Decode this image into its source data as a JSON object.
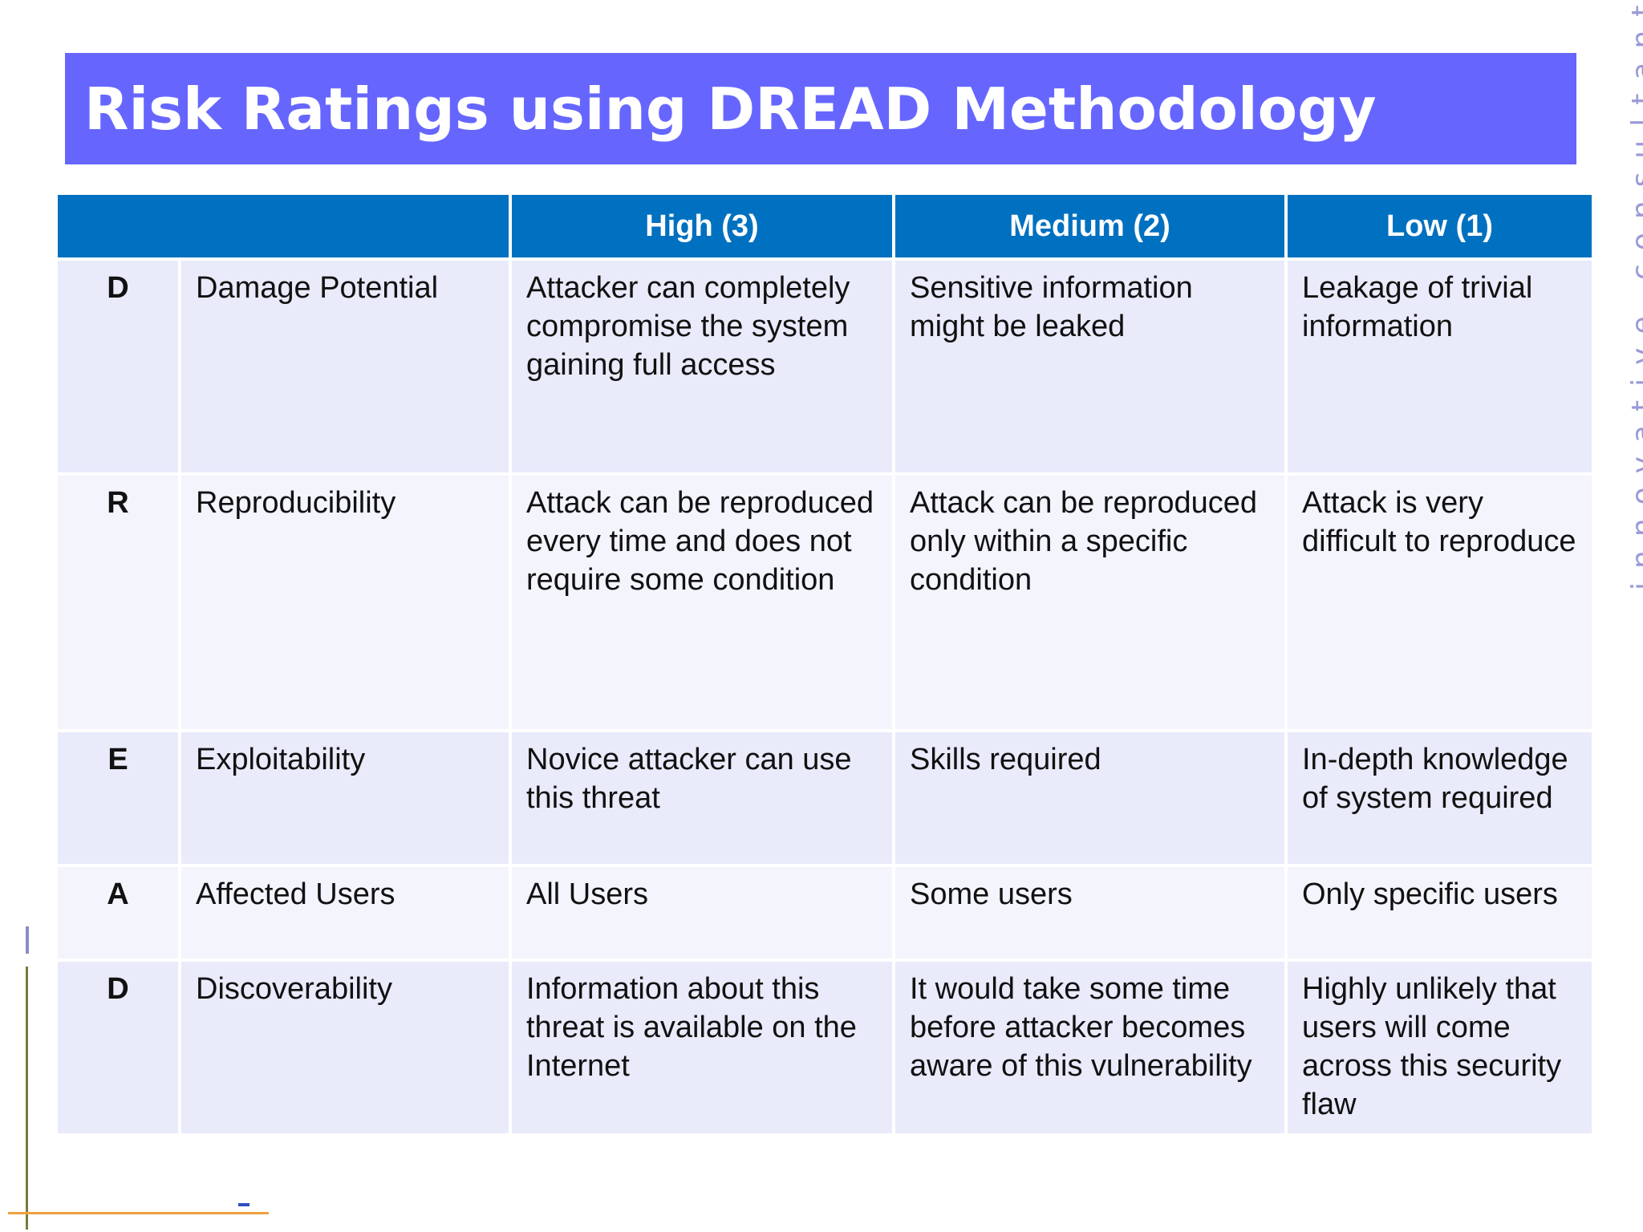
{
  "slide": {
    "title": "Risk Ratings using DREAD Methodology",
    "side_tagline": "innovative consultants"
  },
  "table": {
    "headers": [
      "",
      "High (3)",
      "Medium (2)",
      "Low (1)"
    ],
    "rows": [
      {
        "letter": "D",
        "category": "Damage Potential",
        "high": "Attacker can completely compromise the system gaining full access",
        "medium": "Sensitive information might be leaked",
        "low": "Leakage of trivial information"
      },
      {
        "letter": "R",
        "category": "Reproducibility",
        "high": "Attack can be reproduced every time and does not require some condition",
        "medium": "Attack can be reproduced only within a specific condition",
        "low": "Attack is very difficult to reproduce"
      },
      {
        "letter": "E",
        "category": "Exploitability",
        "high": "Novice attacker can use this threat",
        "medium": "Skills required",
        "low": "In-depth knowledge of system required"
      },
      {
        "letter": "A",
        "category": "Affected Users",
        "high": "All Users",
        "medium": "Some users",
        "low": "Only specific users"
      },
      {
        "letter": "D",
        "category": "Discoverability",
        "high": "Information about this threat is available on the Internet",
        "medium": "It would take some time before attacker becomes aware of this vulnerability",
        "low": "Highly unlikely that users will come across this security flaw"
      }
    ]
  },
  "colors": {
    "title_banner": "#6666ff",
    "header_fill": "#0070c0",
    "row_fill_odd": "#e9eafa",
    "row_fill_even": "#f3f4fc",
    "tagline": "#9a9ad8"
  }
}
